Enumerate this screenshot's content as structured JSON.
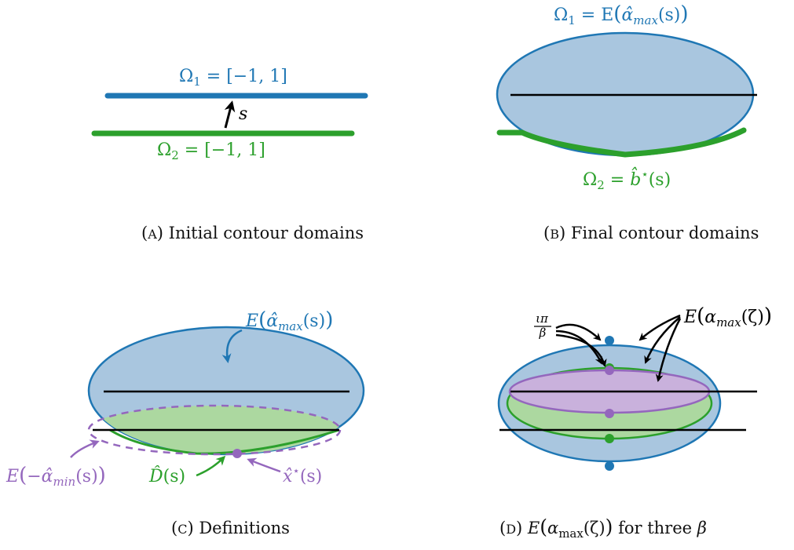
{
  "colors": {
    "blue": "#1f77b4",
    "blue_fill": "#a9c6df",
    "green": "#2ca02c",
    "green_fill": "#acd8a0",
    "purple": "#9467bd",
    "purple_fill": "#c9b1dc",
    "black": "#000000"
  },
  "panel_a": {
    "omega1_sym": "Ω",
    "omega1_sub": "1",
    "omega1_rest": " = [−1, 1]",
    "s_label": "s",
    "omega2_sym": "Ω",
    "omega2_sub": "2",
    "omega2_rest": " = [−1, 1]",
    "caption_letter": "A",
    "caption_text": " Initial contour domains"
  },
  "panel_b": {
    "omega1_sym": "Ω",
    "omega1_sub": "1",
    "omega1_eq": " = E",
    "omega1_arg": "α̂",
    "omega1_argsub": "max",
    "omega1_tail": "(s)",
    "omega2_sym": "Ω",
    "omega2_sub": "2",
    "omega2_eq": " = ",
    "omega2_b": "b̂",
    "omega2_star": "⋆",
    "omega2_tail": "(s)",
    "caption_letter": "B",
    "caption_text": " Final contour domains"
  },
  "panel_c": {
    "e_max_e": "E",
    "e_max_arg": "α̂",
    "e_max_sub": "max",
    "e_max_tail": "(s)",
    "e_min_e": "E",
    "e_min_arg": "−α̂",
    "e_min_sub": "min",
    "e_min_tail": "(s)",
    "d_label": "D̂",
    "d_tail": "(s)",
    "x_label": "x̂",
    "x_star": "⋆",
    "x_tail": "(s)",
    "caption_letter": "C",
    "caption_text": " Definitions"
  },
  "panel_d": {
    "frac_num": "ιπ",
    "frac_den": "β",
    "e_label_e": "E",
    "e_label_arg": "α",
    "e_label_sub": "max",
    "e_label_tail": "(ζ)",
    "caption_letter": "D",
    "caption_text": "E",
    "caption_arg": "α",
    "caption_sub": "max",
    "caption_tail": "(ζ)",
    "caption_suffix": " for three ",
    "caption_beta": "β"
  }
}
